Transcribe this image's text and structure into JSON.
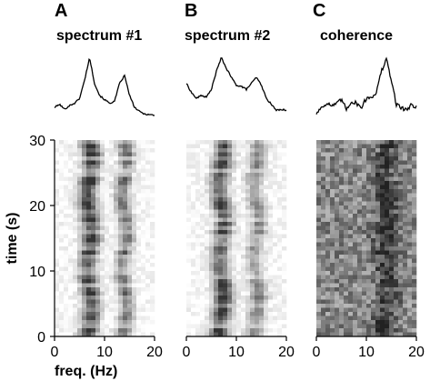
{
  "chart_data": [
    {
      "type": "line",
      "panel": "A",
      "title": "spectrum #1",
      "xlim": [
        0,
        20
      ],
      "x": [
        0,
        1,
        2,
        3,
        4,
        5,
        6,
        7,
        8,
        9,
        10,
        11,
        12,
        13,
        14,
        15,
        16,
        17,
        18,
        19,
        20
      ],
      "values": [
        0.15,
        0.2,
        0.12,
        0.18,
        0.22,
        0.3,
        0.6,
        0.98,
        0.55,
        0.35,
        0.28,
        0.22,
        0.25,
        0.55,
        0.68,
        0.35,
        0.15,
        0.08,
        0.04,
        0.03,
        0.02
      ]
    },
    {
      "type": "line",
      "panel": "B",
      "title": "spectrum #2",
      "xlim": [
        0,
        20
      ],
      "x": [
        0,
        1,
        2,
        3,
        4,
        5,
        6,
        7,
        8,
        9,
        10,
        11,
        12,
        13,
        14,
        15,
        16,
        17,
        18,
        19,
        20
      ],
      "values": [
        0.55,
        0.4,
        0.3,
        0.35,
        0.32,
        0.45,
        0.75,
        0.98,
        0.8,
        0.65,
        0.52,
        0.5,
        0.45,
        0.55,
        0.65,
        0.52,
        0.3,
        0.2,
        0.1,
        0.12,
        0.1
      ]
    },
    {
      "type": "line",
      "panel": "C",
      "title": "coherence",
      "xlim": [
        0,
        20
      ],
      "x": [
        0,
        1,
        2,
        3,
        4,
        5,
        6,
        7,
        8,
        9,
        10,
        11,
        12,
        13,
        14,
        15,
        16,
        17,
        18,
        19,
        20
      ],
      "values": [
        0.05,
        0.15,
        0.22,
        0.18,
        0.2,
        0.28,
        0.12,
        0.25,
        0.22,
        0.15,
        0.3,
        0.32,
        0.4,
        0.75,
        0.95,
        0.6,
        0.2,
        0.15,
        0.1,
        0.2,
        0.15
      ]
    },
    {
      "type": "heatmap",
      "panel": "A",
      "xlabel": "freq. (Hz)",
      "ylabel": "time (s)",
      "xlim": [
        0,
        20
      ],
      "ylim": [
        0,
        30
      ],
      "xticks": [
        "0",
        "10",
        "20"
      ],
      "yticks": [
        "0",
        "10",
        "20",
        "30"
      ],
      "colormap": [
        "#ffffff",
        "#333333"
      ],
      "ridges": [
        {
          "freq": 7,
          "width": 1.3,
          "strength": 0.8
        },
        {
          "freq": 14,
          "width": 1.1,
          "strength": 0.55
        }
      ],
      "noise": 0.18
    },
    {
      "type": "heatmap",
      "panel": "B",
      "xlim": [
        0,
        20
      ],
      "ylim": [
        0,
        30
      ],
      "xticks": [
        "0",
        "10",
        "20"
      ],
      "colormap": [
        "#ffffff",
        "#333333"
      ],
      "ridges": [
        {
          "freq": 7,
          "width": 1.3,
          "strength": 0.75
        },
        {
          "freq": 14,
          "width": 1.2,
          "strength": 0.45
        }
      ],
      "noise": 0.18
    },
    {
      "type": "heatmap",
      "panel": "C",
      "xlim": [
        0,
        20
      ],
      "ylim": [
        0,
        30
      ],
      "xticks": [
        "0",
        "10",
        "20"
      ],
      "colormap": [
        "#ffffff",
        "#222222"
      ],
      "ridges": [
        {
          "freq": 14,
          "width": 1.5,
          "strength": 0.35
        }
      ],
      "base": 0.45,
      "noise": 0.45
    }
  ]
}
